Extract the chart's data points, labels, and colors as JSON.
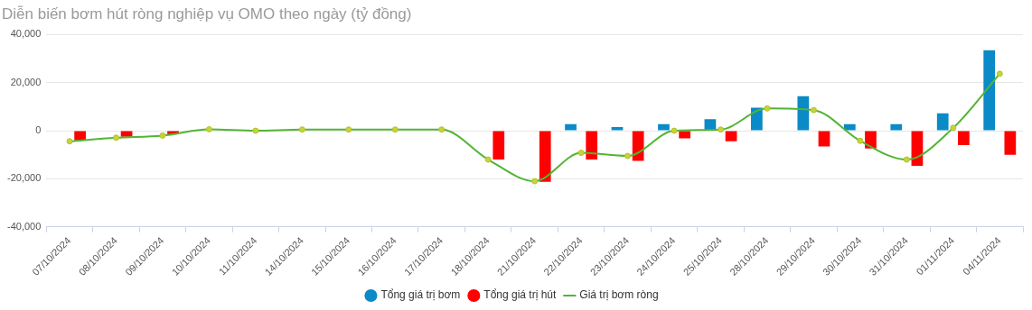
{
  "chart_data": {
    "type": "bar",
    "title": "Diễn biến bơm hút ròng nghiệp vụ OMO theo ngày (tỷ đồng)",
    "categories": [
      "07/10/2024",
      "08/10/2024",
      "09/10/2024",
      "10/10/2024",
      "11/10/2024",
      "14/10/2024",
      "15/10/2024",
      "16/10/2024",
      "17/10/2024",
      "18/10/2024",
      "21/10/2024",
      "22/10/2024",
      "23/10/2024",
      "24/10/2024",
      "25/10/2024",
      "28/10/2024",
      "29/10/2024",
      "30/10/2024",
      "31/10/2024",
      "01/11/2024",
      "04/11/2024"
    ],
    "series": [
      {
        "name": "Tổng giá trị bơm",
        "color": "#0a8ac6",
        "values": [
          null,
          null,
          null,
          null,
          null,
          null,
          null,
          null,
          null,
          null,
          null,
          2700,
          1500,
          2700,
          4800,
          9600,
          14400,
          2700,
          2700,
          7200,
          33500
        ]
      },
      {
        "name": "Tổng giá trị hút",
        "color": "#ff0000",
        "values": [
          -4000,
          -2500,
          -1500,
          null,
          null,
          null,
          null,
          null,
          null,
          -12000,
          -21300,
          -12000,
          -12500,
          -3200,
          -4400,
          null,
          -6500,
          -7400,
          -14600,
          -6000,
          -10000
        ]
      },
      {
        "name": "Giá trị bơm ròng",
        "type": "line",
        "color": "#52b434",
        "values": [
          -4400,
          -2900,
          -2000,
          600,
          0,
          500,
          500,
          500,
          500,
          -12000,
          -21000,
          -9200,
          -10500,
          0,
          500,
          9300,
          8600,
          -4200,
          -12000,
          1200,
          23700
        ]
      }
    ],
    "ylim": [
      -40000,
      40000
    ],
    "yticks": [
      {
        "value": -40000,
        "label": "-40,000"
      },
      {
        "value": -20000,
        "label": "-20,000"
      },
      0,
      {
        "value": 20000,
        "label": "20,000"
      },
      {
        "value": 40000,
        "label": "40,000"
      }
    ],
    "grid": "y",
    "legend": "bottom",
    "marker": "circle",
    "line_style": "solid"
  }
}
